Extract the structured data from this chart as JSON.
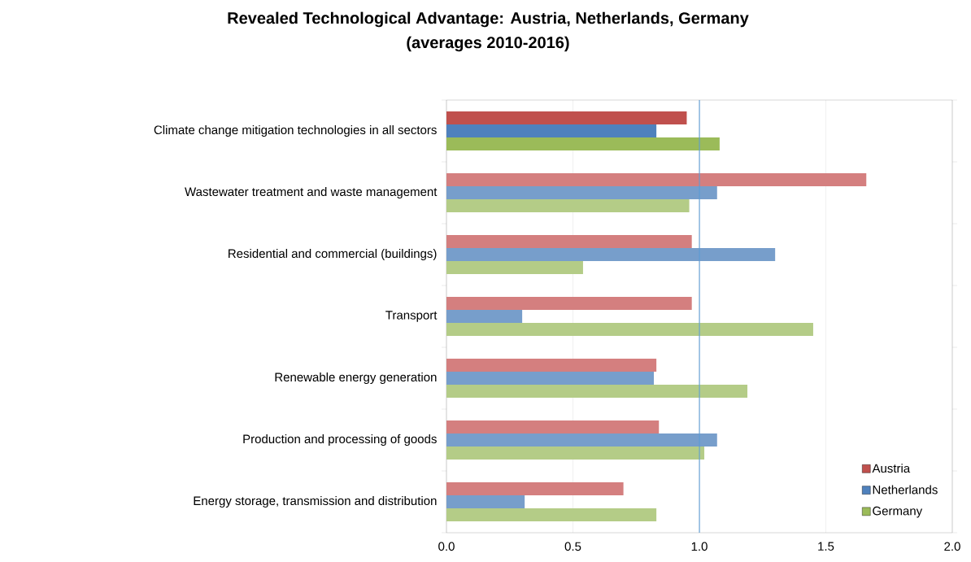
{
  "chart_data": {
    "type": "bar",
    "orientation": "horizontal",
    "title": "Revealed Technological Advantage: Austria, Netherlands, Germany",
    "subtitle": "(averages 2010-2016)",
    "categories": [
      "Climate change mitigation technologies in all sectors",
      "Wastewater treatment and waste management",
      "Residential and commercial (buildings)",
      "Transport",
      "Renewable energy generation",
      "Production and processing of goods",
      "Energy storage, transmission and distribution"
    ],
    "series": [
      {
        "name": "Austria",
        "color": "#c0504d",
        "colors": [
          "#c0504d",
          "#d47f7f",
          "#d47f7f",
          "#d47f7f",
          "#d47f7f",
          "#d47f7f",
          "#d47f7f"
        ],
        "values": [
          0.95,
          1.66,
          0.97,
          0.97,
          0.83,
          0.84,
          0.7
        ]
      },
      {
        "name": "Netherlands",
        "color": "#4f81bd",
        "colors": [
          "#4f81bd",
          "#779ecb",
          "#779ecb",
          "#779ecb",
          "#779ecb",
          "#779ecb",
          "#779ecb"
        ],
        "values": [
          0.83,
          1.07,
          1.3,
          0.3,
          0.82,
          1.07,
          0.31
        ]
      },
      {
        "name": "Germany",
        "color": "#9bbb59",
        "colors": [
          "#9bbb59",
          "#b4cc87",
          "#b4cc87",
          "#b4cc87",
          "#b4cc87",
          "#b4cc87",
          "#b4cc87"
        ],
        "values": [
          1.08,
          0.96,
          0.54,
          1.45,
          1.19,
          1.02,
          0.83
        ]
      }
    ],
    "xlim": [
      0,
      2
    ],
    "xticks": [
      {
        "value": 0,
        "label": "0.0"
      },
      0.5,
      {
        "value": 1,
        "label": "1.0"
      },
      1.5,
      {
        "value": 2,
        "label": "2.0"
      }
    ],
    "grid": "x",
    "legend": "bottom right",
    "ref_lines": [
      {
        "axis": "x",
        "value": 1,
        "color": "#5b9bd5"
      }
    ]
  }
}
